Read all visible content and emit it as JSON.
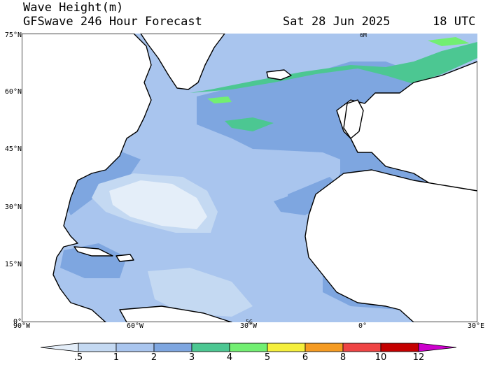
{
  "header": {
    "title": "Wave Height(m)",
    "model_line": "GFSwave 246 Hour Forecast",
    "date": "Sat 28 Jun 2025",
    "time": "18 UTC"
  },
  "map": {
    "lat_labels": [
      "75°N",
      "60°N",
      "45°N",
      "30°N",
      "15°N",
      "0°"
    ],
    "lon_labels": [
      "90°W",
      "60°W",
      "30°W",
      "0°",
      "30°E"
    ],
    "contour_labels": [
      "6M",
      "5G"
    ],
    "colors": {
      "land": "#ffffff",
      "coast": "#000000",
      "band_0_5": "#e4eef9",
      "band_0_5_1": "#c4d9f2",
      "band_1_2": "#a9c5ee",
      "band_2_3": "#7ea6e0",
      "band_3_4": "#4cc792",
      "band_4_5": "#72ef72"
    }
  },
  "colorbar": {
    "labels": [
      ".5",
      "1",
      "2",
      "3",
      "4",
      "5",
      "6",
      "8",
      "10",
      "12"
    ],
    "colors": [
      "#e4eef9",
      "#c4d9f2",
      "#a9c5ee",
      "#7ea6e0",
      "#4cc792",
      "#72ef72",
      "#f5ef3c",
      "#f59b22",
      "#ee4444",
      "#c40000",
      "#cc00cc"
    ]
  }
}
